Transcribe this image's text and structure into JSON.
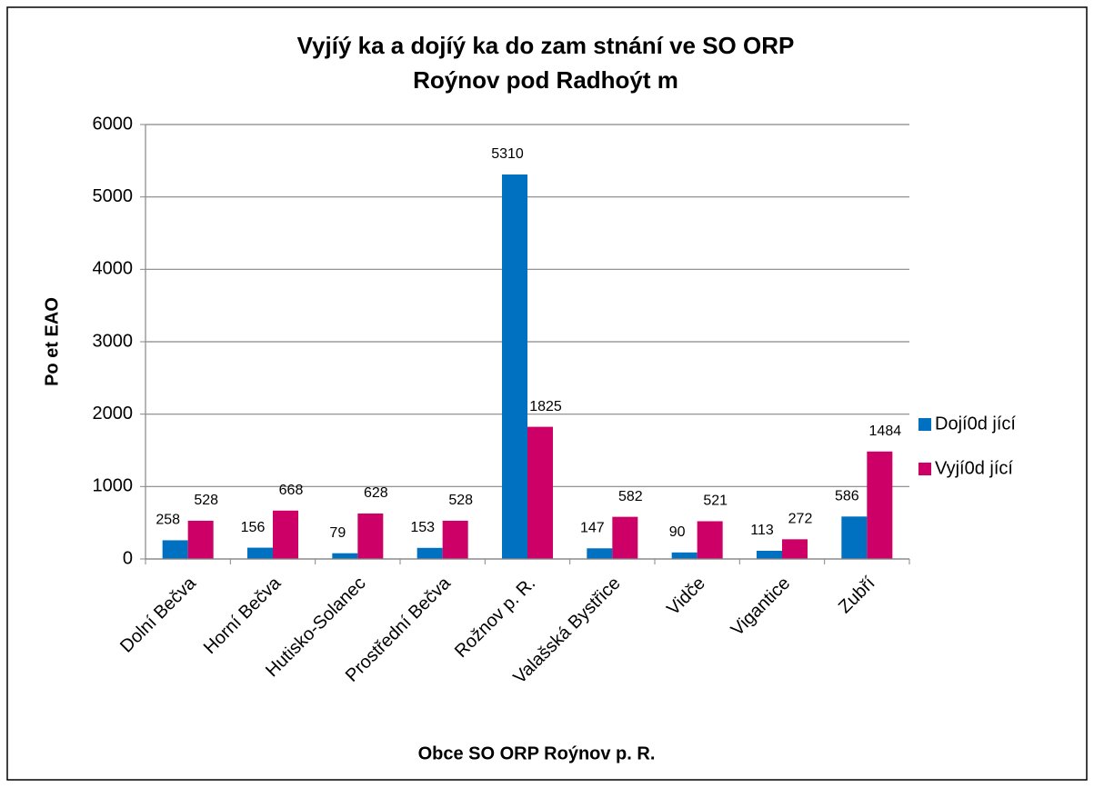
{
  "chart_data": {
    "type": "bar",
    "title": [
      "Vyjíý  ka a dojíý  ka do zam  stnání ve SO ORP",
      "Roýnov pod Radhoýt  m"
    ],
    "x_label": "Obce SO ORP Roýnov p. R.",
    "y_label": "Po  et EAO",
    "categories": [
      "Dolní Bečva",
      "Horní Bečva",
      "Hutisko-Solanec",
      "Prostřední Bečva",
      "Rožnov p. R.",
      "Valašská Bystřice",
      "Vidče",
      "Vigantice",
      "Zubří"
    ],
    "series": [
      {
        "name": "Dojí0d  jící",
        "color": "#0070c0",
        "values": [
          258,
          156,
          79,
          153,
          5310,
          147,
          90,
          113,
          586
        ]
      },
      {
        "name": "Vyjí0d  jící",
        "color": "#cc0066",
        "values": [
          528,
          668,
          628,
          528,
          1825,
          582,
          521,
          272,
          1484
        ]
      }
    ],
    "ylim": [
      0,
      6000
    ],
    "yticks": [
      0,
      1000,
      2000,
      3000,
      4000,
      5000,
      6000
    ],
    "grid": true,
    "legend": "right"
  }
}
